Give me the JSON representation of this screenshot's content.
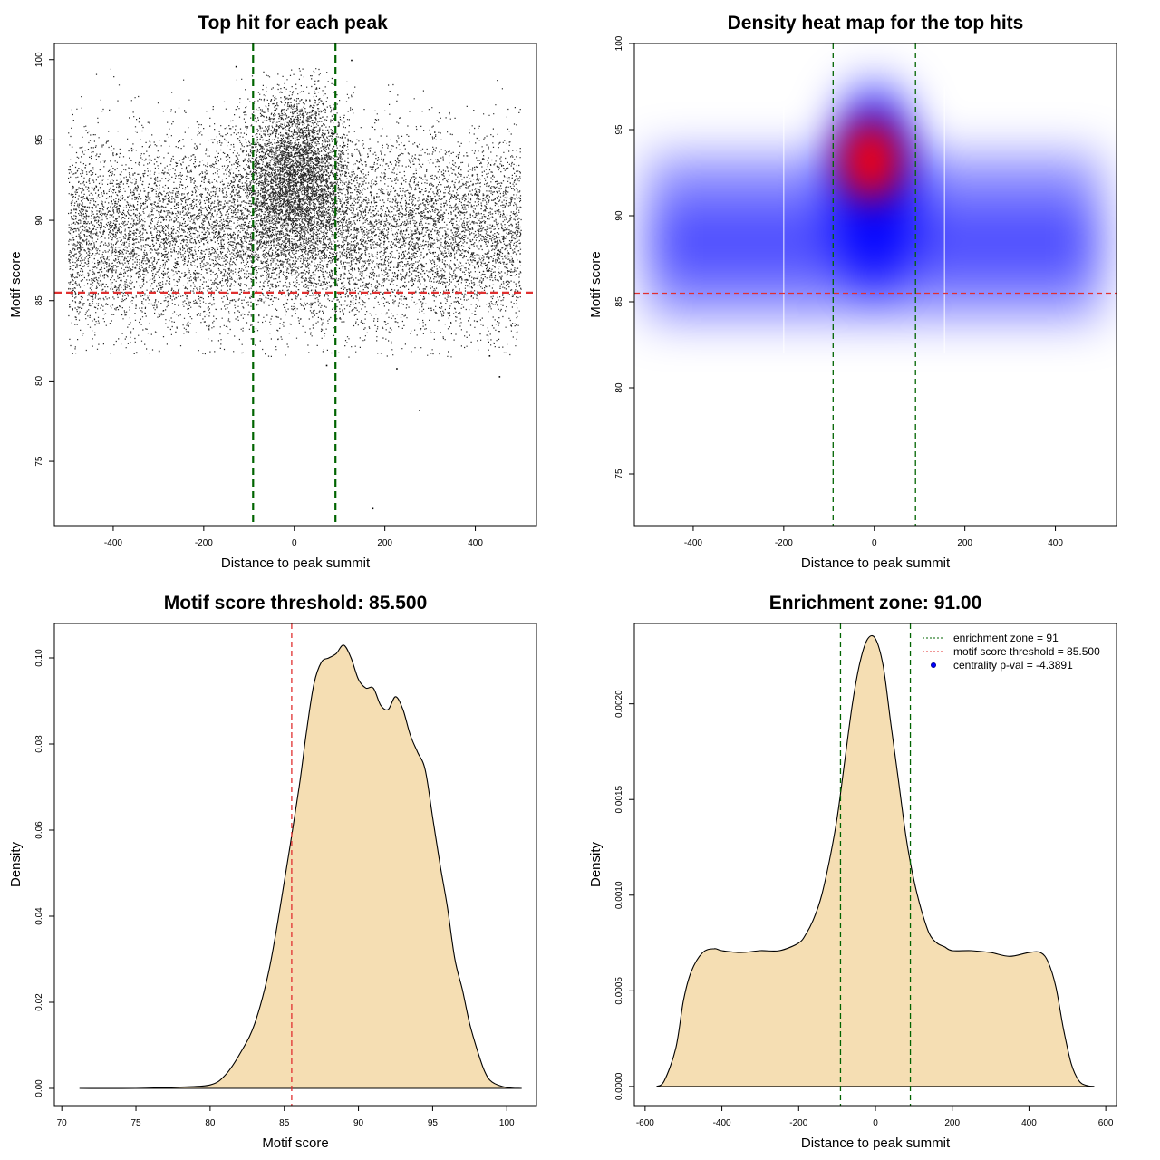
{
  "chart_data": [
    {
      "type": "scatter",
      "title": "Top hit for each peak",
      "xlabel": "Distance to peak summit",
      "ylabel": "Motif score",
      "xlim": [
        -530,
        535
      ],
      "ylim": [
        71,
        101
      ],
      "xticks": [
        -400,
        -200,
        0,
        200,
        400
      ],
      "yticks": [
        75,
        80,
        85,
        90,
        95,
        100
      ],
      "hlines": [
        {
          "y": 85.5,
          "color": "#e03030",
          "style": "dashed"
        }
      ],
      "vlines": [
        {
          "x": -91,
          "color": "#006400",
          "style": "dashed"
        },
        {
          "x": 91,
          "color": "#006400",
          "style": "dashed"
        }
      ],
      "point_color": "#000000",
      "distribution": {
        "x_range": [
          -500,
          500
        ],
        "background": {
          "mean": 89.2,
          "sd": 3.0
        },
        "center_cluster": {
          "x_mean": 0,
          "x_sd": 60,
          "mean": 92.8,
          "sd": 2.6
        },
        "y_range": [
          81.5,
          99.5
        ],
        "approx_points": 16000
      },
      "outliers": [
        {
          "x": 172,
          "y": 72.1
        },
        {
          "x": 275,
          "y": 78.2
        },
        {
          "x": -130,
          "y": 99.6
        },
        {
          "x": 125,
          "y": 100.0
        },
        {
          "x": 452,
          "y": 80.3
        },
        {
          "x": 225,
          "y": 80.8
        },
        {
          "x": 430,
          "y": 81.6
        },
        {
          "x": -350,
          "y": 81.8
        },
        {
          "x": 70,
          "y": 81.0
        },
        {
          "x": -300,
          "y": 81.9
        }
      ]
    },
    {
      "type": "heatmap",
      "title": "Density heat map for the top hits",
      "xlabel": "Distance to peak summit",
      "ylabel": "Motif score",
      "xlim": [
        -530,
        535
      ],
      "ylim": [
        72,
        100
      ],
      "xticks": [
        -400,
        -200,
        0,
        200,
        400
      ],
      "yticks": [
        75,
        80,
        85,
        90,
        95,
        100
      ],
      "colors": [
        "#ffffff",
        "#0000ff",
        "#ff0000"
      ],
      "hlines": [
        {
          "y": 85.5,
          "color": "#e03030",
          "style": "dashed"
        }
      ],
      "vlines": [
        {
          "x": -91,
          "color": "#006400",
          "style": "dashed"
        },
        {
          "x": 91,
          "color": "#006400",
          "style": "dashed"
        }
      ],
      "grid_lines_x": [
        -200,
        155
      ]
    },
    {
      "type": "area",
      "title": "Motif score threshold: 85.500",
      "xlabel": "Motif score",
      "ylabel": "Density",
      "xlim": [
        69.5,
        102
      ],
      "ylim": [
        -0.004,
        0.108
      ],
      "xticks": [
        70,
        75,
        80,
        85,
        90,
        95,
        100
      ],
      "yticks": [
        0.0,
        0.02,
        0.04,
        0.06,
        0.08,
        0.1
      ],
      "ytick_labels": [
        "0.00",
        "0.02",
        "0.04",
        "0.06",
        "0.08",
        "0.10"
      ],
      "fill": "#f5deb3",
      "vlines": [
        {
          "x": 85.5,
          "color": "#e03030",
          "style": "dashed"
        }
      ],
      "x": [
        71.2,
        75,
        78,
        80,
        81,
        82,
        83,
        84,
        85,
        86,
        86.5,
        87,
        87.5,
        88,
        88.5,
        89,
        89.5,
        90,
        90.5,
        91,
        91.5,
        92,
        92.5,
        93,
        93.5,
        94,
        94.5,
        95,
        95.5,
        96,
        96.5,
        97,
        97.5,
        98,
        98.5,
        99,
        100,
        101
      ],
      "values": [
        0,
        0,
        0.0003,
        0.0008,
        0.003,
        0.008,
        0.015,
        0.028,
        0.048,
        0.07,
        0.083,
        0.094,
        0.099,
        0.1,
        0.101,
        0.103,
        0.1,
        0.095,
        0.093,
        0.093,
        0.089,
        0.088,
        0.091,
        0.088,
        0.082,
        0.078,
        0.074,
        0.063,
        0.052,
        0.042,
        0.03,
        0.023,
        0.015,
        0.009,
        0.004,
        0.0015,
        0.0002,
        0
      ]
    },
    {
      "type": "area",
      "title": "Enrichment zone: 91.00",
      "xlabel": "Distance to peak summit",
      "ylabel": "Density",
      "xlim": [
        -628,
        628
      ],
      "ylim": [
        -0.0001,
        0.00242
      ],
      "xticks": [
        -600,
        -400,
        -200,
        0,
        200,
        400,
        600
      ],
      "yticks": [
        0.0,
        0.0005,
        0.001,
        0.0015,
        0.002
      ],
      "ytick_labels": [
        "0.0000",
        "0.0005",
        "0.0010",
        "0.0015",
        "0.0020"
      ],
      "fill": "#f5deb3",
      "vlines": [
        {
          "x": -91,
          "color": "#006400",
          "style": "dashed"
        },
        {
          "x": 91,
          "color": "#006400",
          "style": "dashed"
        }
      ],
      "x": [
        -570,
        -550,
        -520,
        -500,
        -480,
        -450,
        -420,
        -400,
        -350,
        -300,
        -250,
        -200,
        -180,
        -160,
        -140,
        -120,
        -100,
        -80,
        -60,
        -40,
        -20,
        0,
        20,
        40,
        60,
        80,
        100,
        120,
        140,
        160,
        180,
        200,
        250,
        300,
        350,
        400,
        430,
        450,
        470,
        490,
        510,
        530,
        550,
        570
      ],
      "values": [
        0,
        3e-05,
        0.0002,
        0.00045,
        0.0006,
        0.0007,
        0.00072,
        0.00071,
        0.0007,
        0.00071,
        0.00071,
        0.00075,
        0.0008,
        0.00088,
        0.001,
        0.00118,
        0.0014,
        0.0017,
        0.002,
        0.00222,
        0.00234,
        0.00234,
        0.0022,
        0.0019,
        0.0016,
        0.0013,
        0.00108,
        0.00092,
        0.0008,
        0.00075,
        0.00073,
        0.00071,
        0.00071,
        0.0007,
        0.00068,
        0.0007,
        0.0007,
        0.00065,
        0.00052,
        0.0003,
        0.00012,
        3e-05,
        5e-06,
        0
      ],
      "legend": {
        "position": "top-right",
        "items": [
          {
            "label": "enrichment zone = 91",
            "color": "#006400",
            "style": "dotted-line"
          },
          {
            "label": "motif score threshold = 85.500",
            "color": "#e03030",
            "style": "dotted-line"
          },
          {
            "label": "centrality p-val = -4.3891",
            "color": "#0000ff",
            "style": "point"
          }
        ]
      }
    }
  ]
}
